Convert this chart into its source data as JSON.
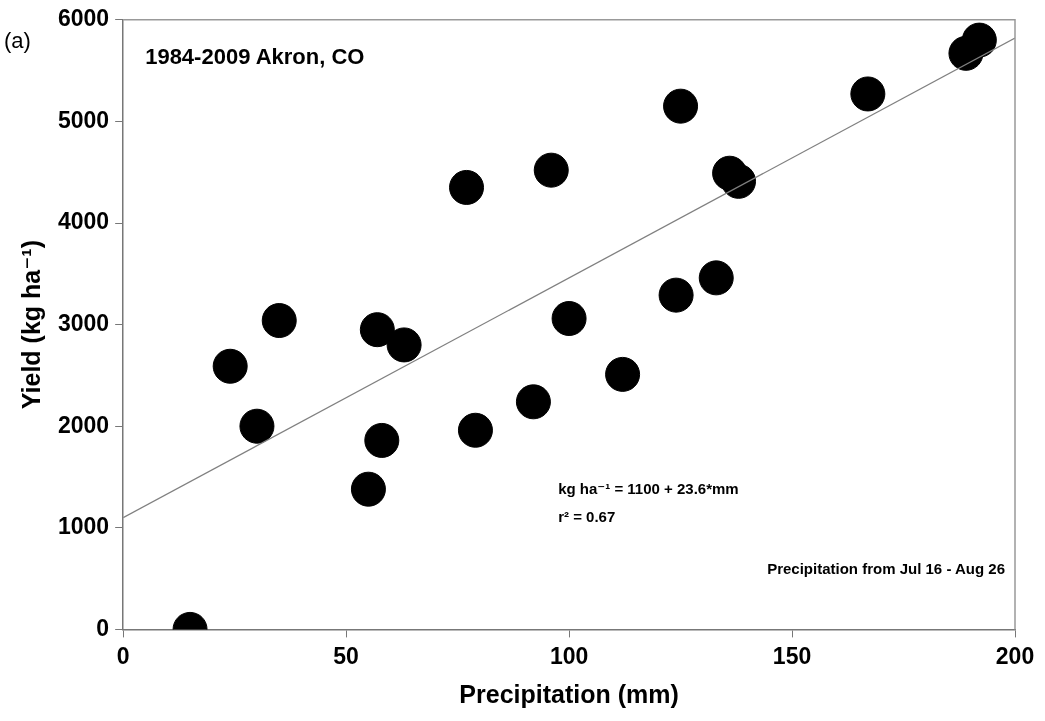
{
  "chart_data": {
    "type": "scatter",
    "xlabel": "Precipitation (mm)",
    "ylabel": "Yield (kg ha⁻¹)",
    "xlim": [
      0,
      200
    ],
    "xticks": [
      0,
      50,
      100,
      150,
      200
    ],
    "ylim": [
      0,
      6000
    ],
    "yticks": [
      0,
      1000,
      2000,
      3000,
      4000,
      5000,
      6000
    ],
    "grid": false,
    "legend": false,
    "marker": "circle",
    "annotations": [
      "(a)",
      "1984-2009 Akron, CO",
      "kg ha⁻¹ = 1100 + 23.6*mm",
      "r² = 0.67",
      "Precipitation from Jul 16 - Aug 26"
    ],
    "series": [
      {
        "color": "#000000",
        "x": [
          15,
          24,
          30,
          35,
          57,
          63,
          58,
          55,
          77,
          79,
          96,
          92,
          100,
          125,
          136,
          138,
          124,
          133,
          112,
          167,
          189,
          192
        ],
        "values": [
          0,
          2590,
          2000,
          3040,
          2950,
          2800,
          1860,
          1380,
          4350,
          1960,
          4520,
          2240,
          3060,
          5150,
          4490,
          4410,
          3290,
          3460,
          2510,
          5270,
          5670,
          5800
        ]
      },
      {
        "type": "line",
        "color": "#808080",
        "marker": "none",
        "line_style": "solid",
        "x": [
          0,
          200
        ],
        "values": [
          1100,
          5820
        ]
      }
    ]
  }
}
